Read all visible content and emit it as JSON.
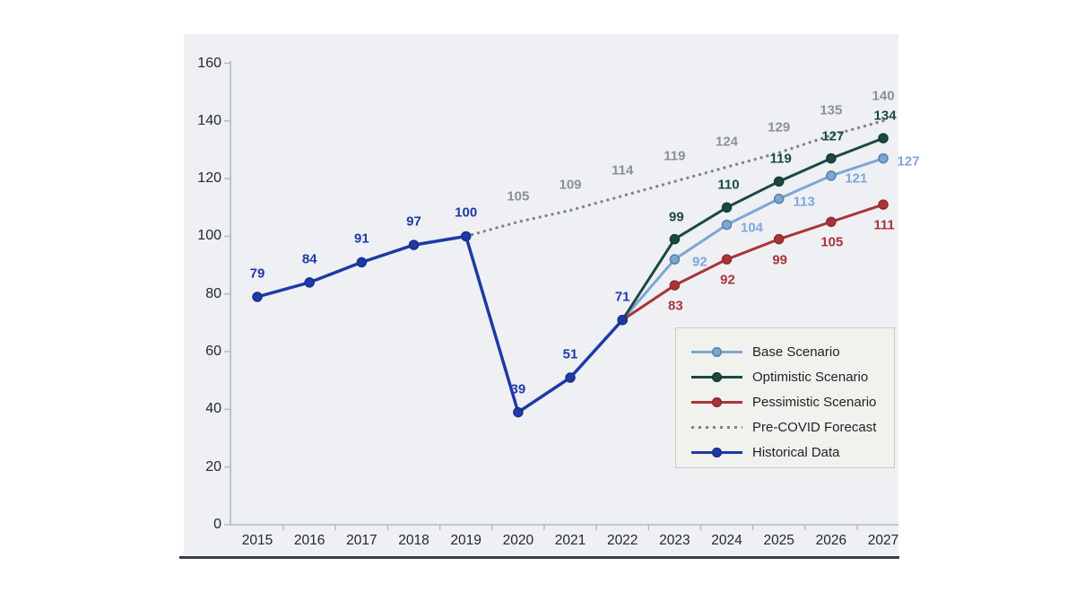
{
  "chart_data": {
    "type": "line",
    "title": "",
    "x_start_year": 2015,
    "x_labels": [
      "2015",
      "2016",
      "2017",
      "2018",
      "2019",
      "2020",
      "2021",
      "2022",
      "2023",
      "2024",
      "2025",
      "2026",
      "2027"
    ],
    "ylim": [
      0,
      160
    ],
    "yticks": [
      0,
      20,
      40,
      60,
      80,
      100,
      120,
      140,
      160
    ],
    "grid": false,
    "legend_position": "inside-right",
    "series": [
      {
        "key": "precovid",
        "name": "Pre-COVID Forecast",
        "style": "dotted",
        "color": "#7e848c",
        "marker": "none",
        "label_color": "#8b9098",
        "start_year": 2019,
        "values": [
          100,
          105,
          109,
          114,
          119,
          124,
          129,
          135,
          140
        ],
        "label_skip_first": true
      },
      {
        "key": "base",
        "name": "Base Scenario",
        "style": "solid",
        "color": "#7ea6d3",
        "marker": "#567fa8",
        "label_color": "#7fa7d9",
        "start_year": 2022,
        "values": [
          71,
          92,
          104,
          113,
          121,
          127
        ],
        "label_skip_first": true
      },
      {
        "key": "optimistic",
        "name": "Optimistic Scenario",
        "style": "solid",
        "color": "#1a4a40",
        "marker": "#123a32",
        "label_color": "#1a4a40",
        "start_year": 2022,
        "values": [
          71,
          99,
          110,
          119,
          127,
          134
        ],
        "label_skip_first": true
      },
      {
        "key": "pessimistic",
        "name": "Pessimistic Scenario",
        "style": "solid",
        "color": "#a93439",
        "marker": "#8d2b2f",
        "label_color": "#a93439",
        "start_year": 2022,
        "values": [
          71,
          83,
          92,
          99,
          105,
          111
        ],
        "label_skip_first": true
      },
      {
        "key": "historical",
        "name": "Historical Data",
        "style": "solid",
        "color": "#1e3aa5",
        "marker": "#17308c",
        "label_color": "#1e3aa5",
        "start_year": 2015,
        "values": [
          79,
          84,
          91,
          97,
          100,
          39,
          51,
          71
        ],
        "label_skip_first": false
      }
    ],
    "legend_order": [
      "base",
      "optimistic",
      "pessimistic",
      "precovid",
      "historical"
    ]
  },
  "colors": {
    "plot_background": "#eef0f4",
    "axis": "#b3b8c0",
    "axis_text": "#23272e",
    "legend_background": "#f1f1ee",
    "legend_border": "#c9c9c9",
    "baseline_rule": "#373d44"
  }
}
